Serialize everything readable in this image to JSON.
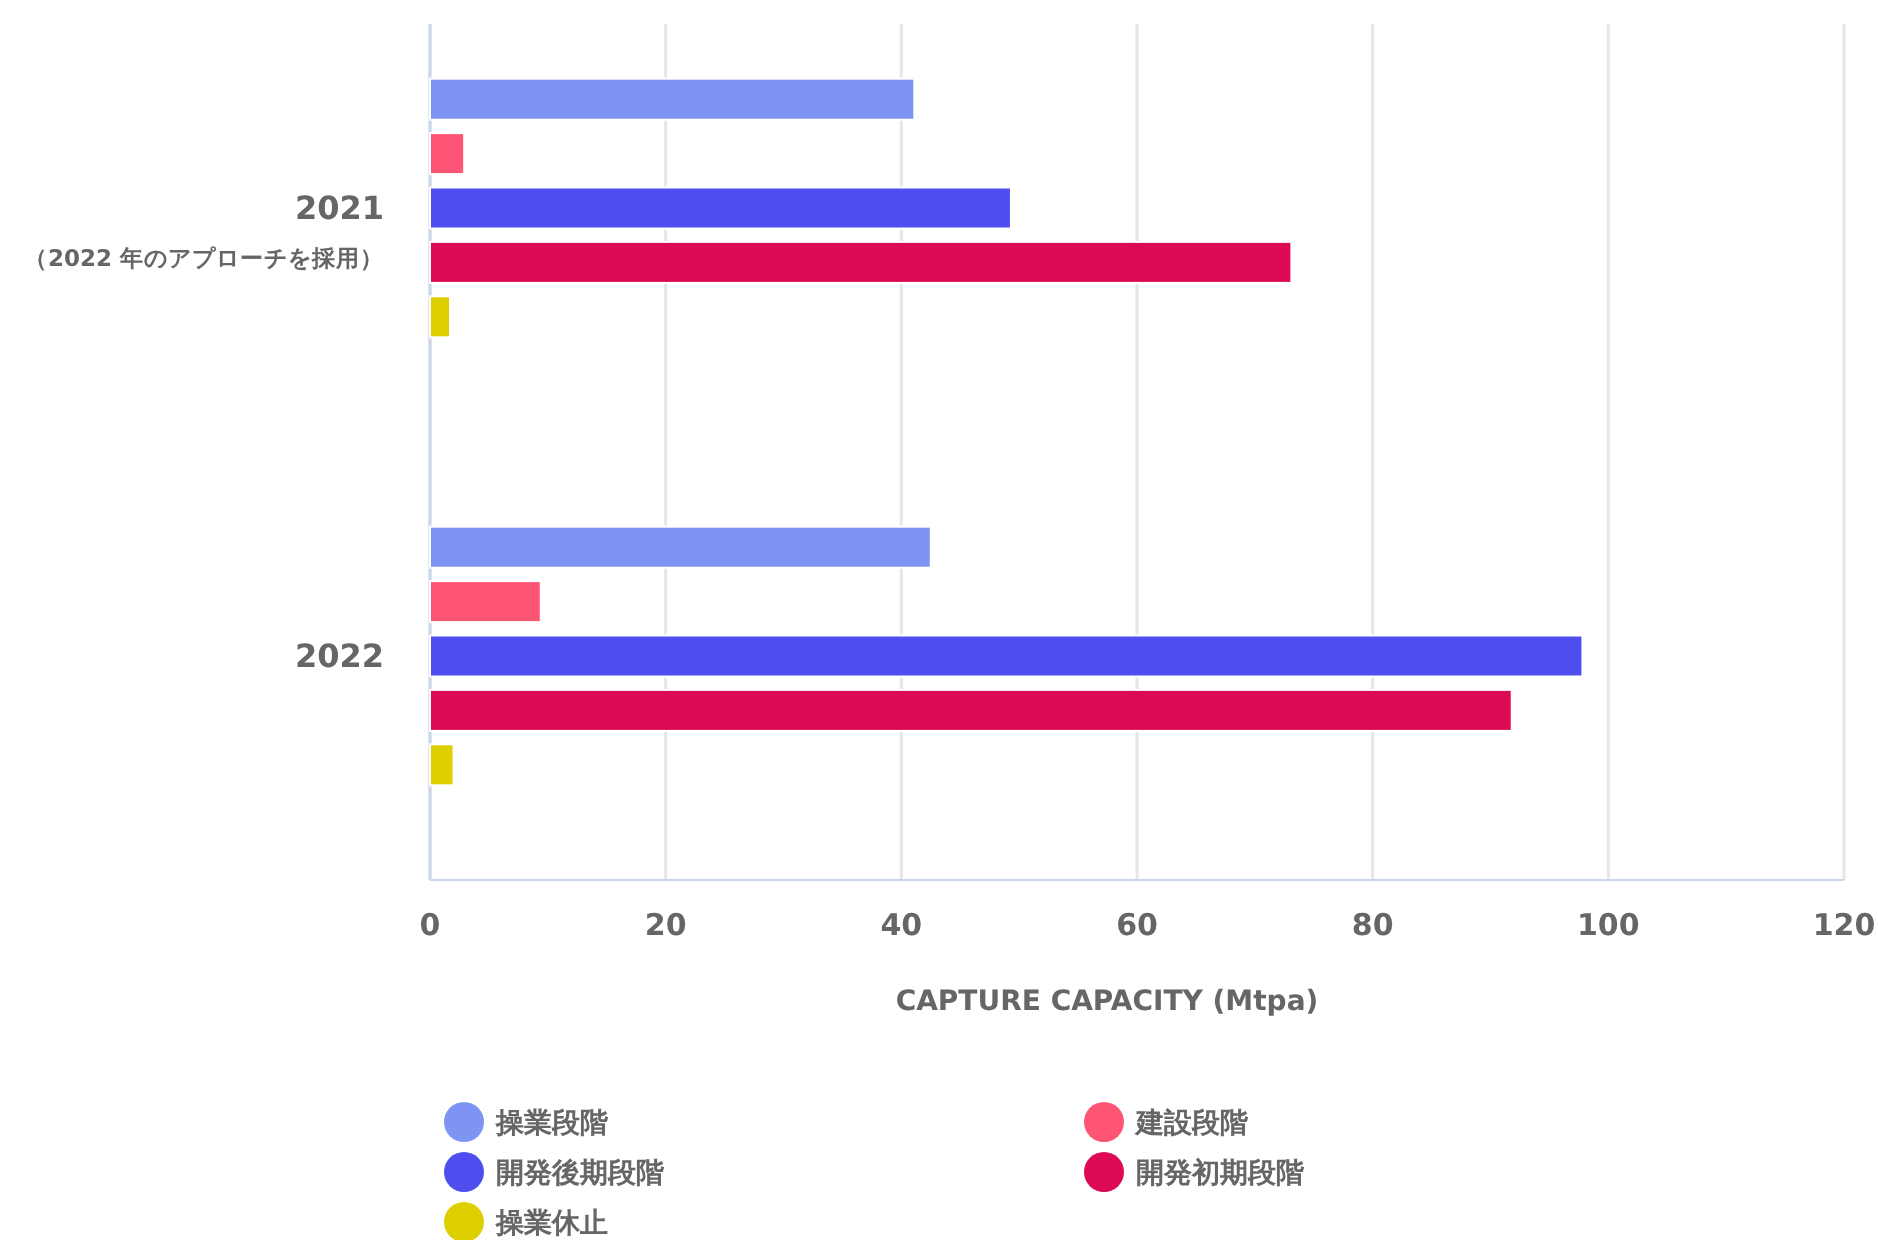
{
  "chart_data": {
    "type": "bar",
    "orientation": "horizontal",
    "categories": [
      "2021\n（2022 年のアプローチを採用）",
      "2022"
    ],
    "series": [
      {
        "name": "操業段階",
        "color": "#7e94f2",
        "values": [
          41.1,
          42.5
        ]
      },
      {
        "name": "建設段階",
        "color": "#ff5574",
        "values": [
          2.9,
          9.4
        ]
      },
      {
        "name": "開発後期段階",
        "color": "#4e4eee",
        "values": [
          49.3,
          97.8
        ]
      },
      {
        "name": "開発初期段階",
        "color": "#dc0955",
        "values": [
          73.1,
          91.8
        ]
      },
      {
        "name": "操業休止",
        "color": "#ddcf00",
        "values": [
          1.7,
          2.0
        ]
      }
    ],
    "xlabel": "CAPTURE CAPACITY (Mtpa)",
    "xlim": [
      0,
      120
    ],
    "xticks": [
      0,
      20,
      40,
      60,
      80,
      100,
      120
    ],
    "grid": "x",
    "legend": "bottom"
  }
}
